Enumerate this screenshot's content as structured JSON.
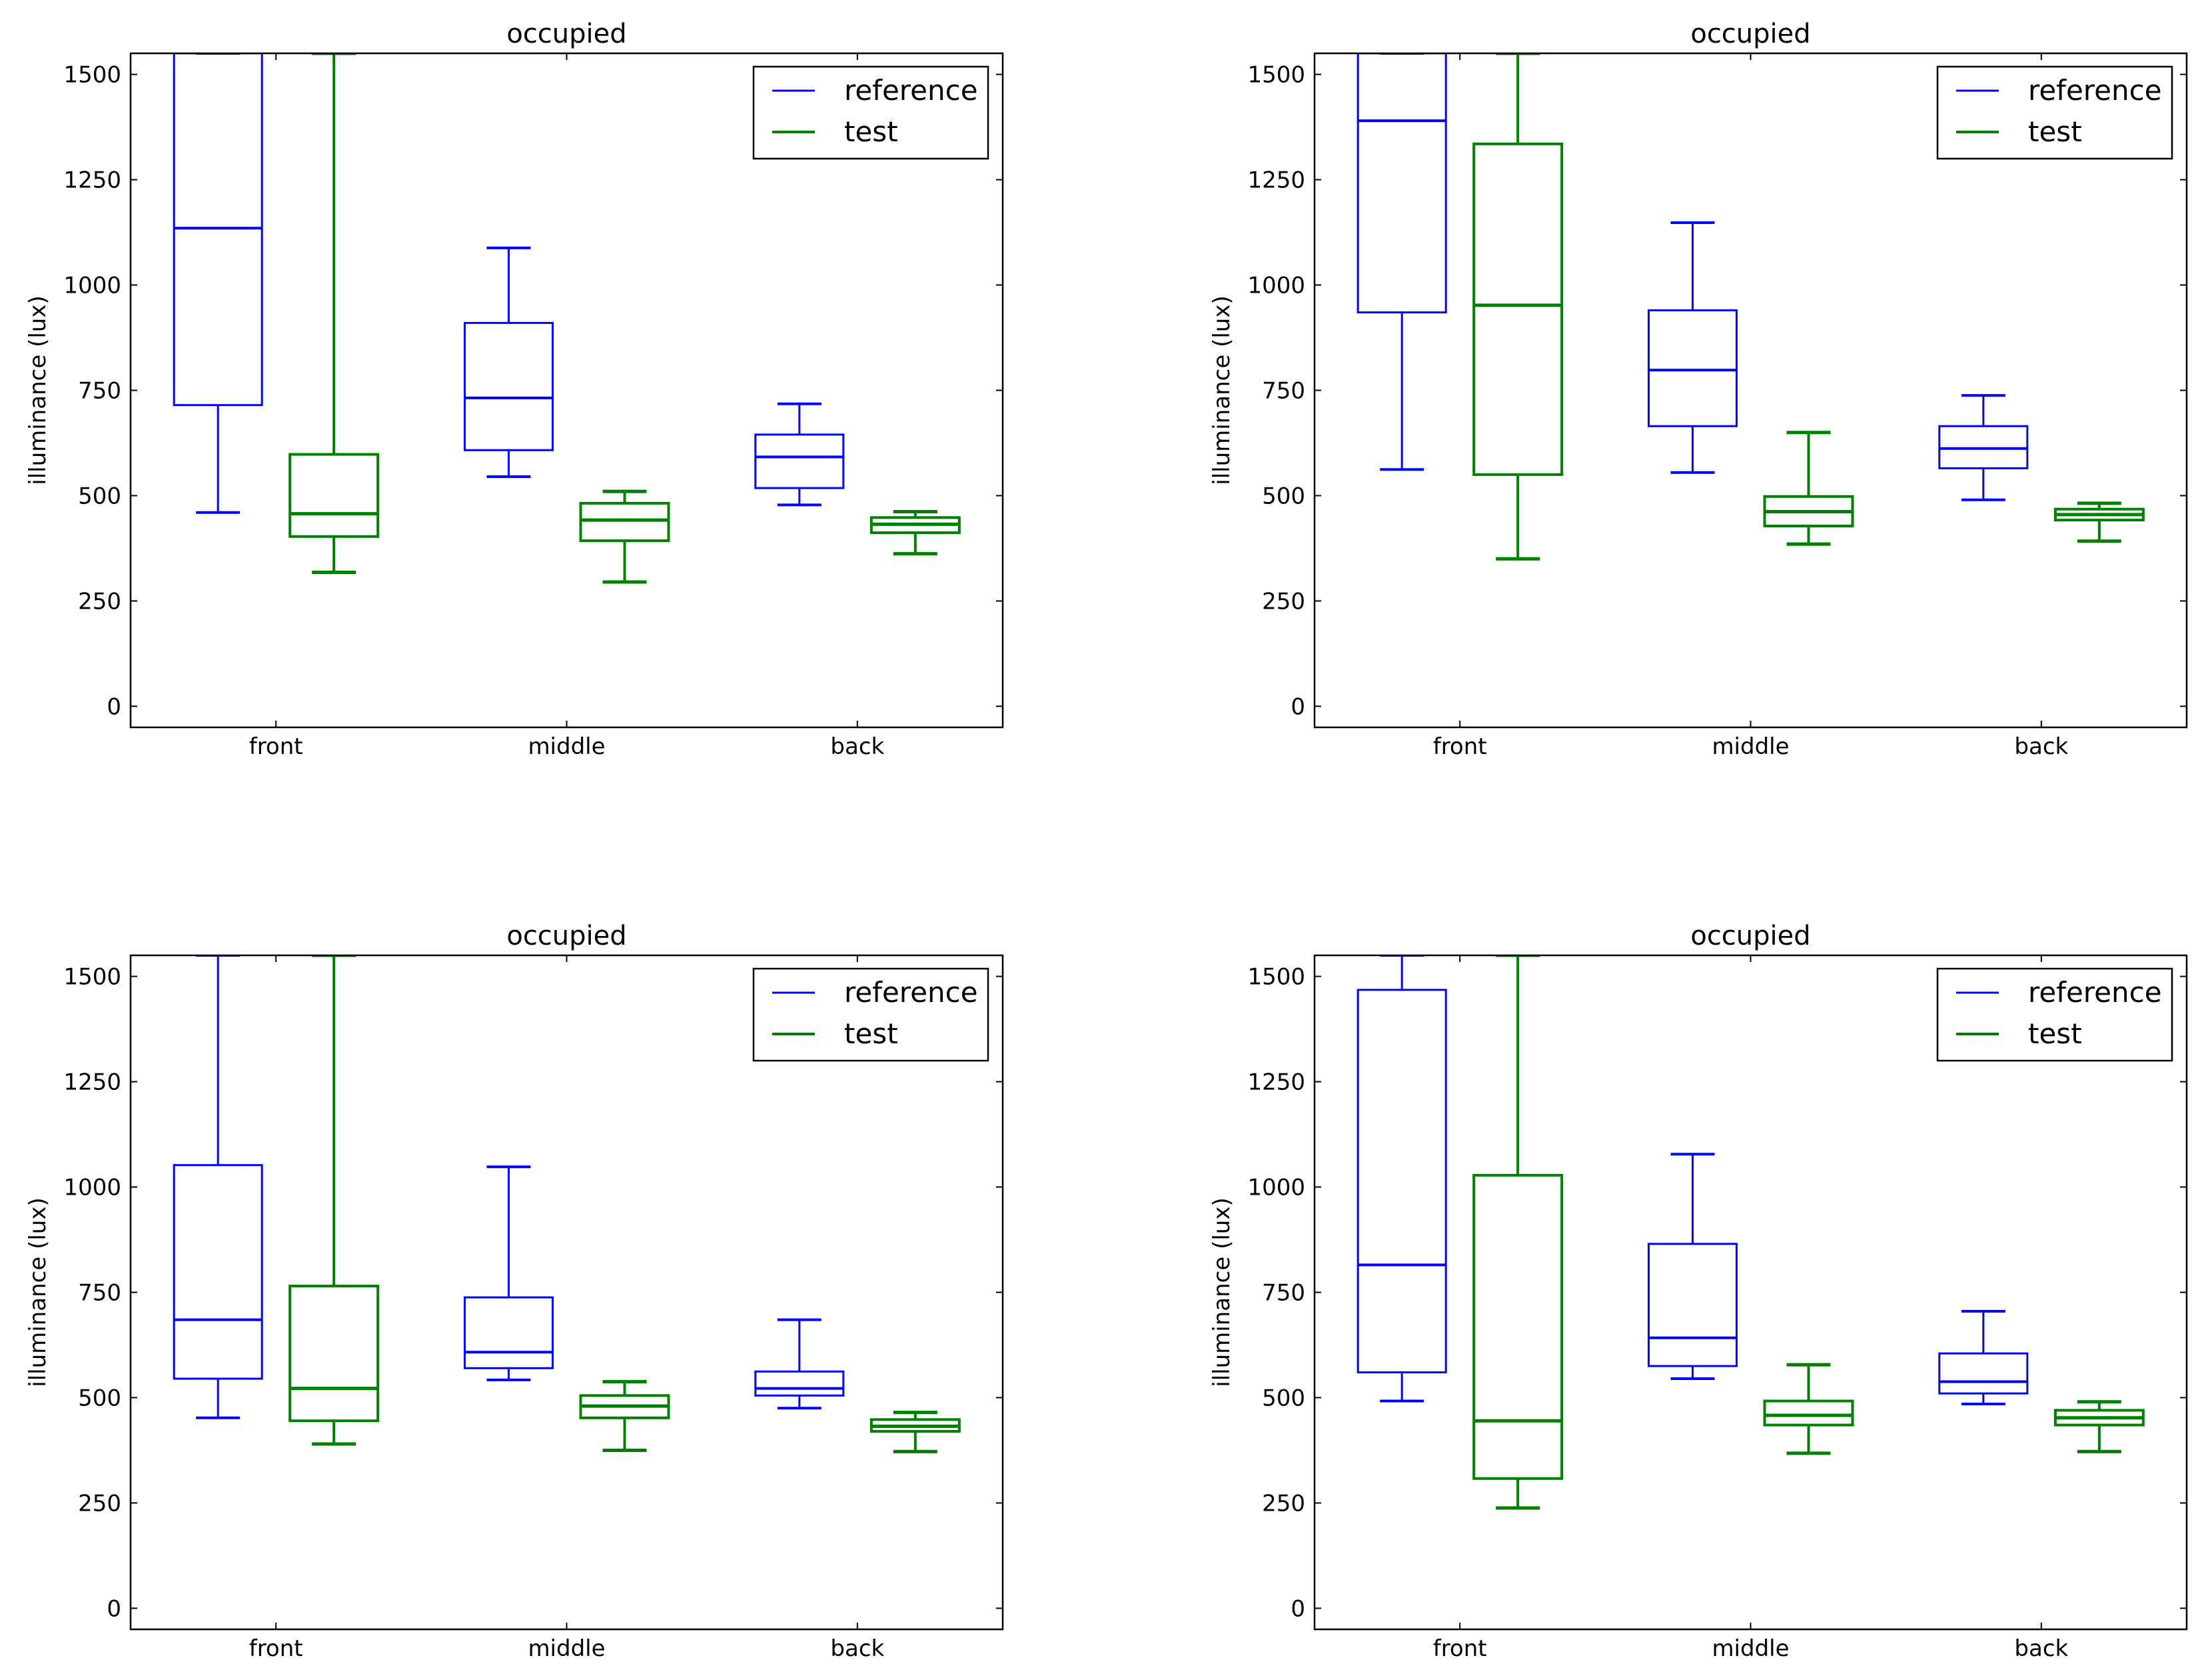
{
  "colors": {
    "reference": "#0000ff",
    "test": "#008000",
    "axes": "#000000"
  },
  "chart_data": [
    {
      "type": "box",
      "title": "occupied",
      "xlabel": "",
      "ylabel": "illuminance (lux)",
      "ylim": [
        -50,
        1550
      ],
      "yticks": [
        "0",
        "250",
        "500",
        "750",
        "1000",
        "1250",
        "1500"
      ],
      "categories": [
        "front",
        "middle",
        "back"
      ],
      "legend": {
        "position": "upper right",
        "entries": [
          "reference",
          "test"
        ]
      },
      "series": [
        {
          "name": "reference",
          "boxes": [
            {
              "whislo": 460,
              "q1": 715,
              "med": 1135,
              "q3": 1550,
              "whishi": 1550
            },
            {
              "whislo": 545,
              "q1": 608,
              "med": 732,
              "q3": 910,
              "whishi": 1088
            },
            {
              "whislo": 478,
              "q1": 518,
              "med": 592,
              "q3": 645,
              "whishi": 718
            }
          ]
        },
        {
          "name": "test",
          "boxes": [
            {
              "whislo": 318,
              "q1": 403,
              "med": 457,
              "q3": 598,
              "whishi": 1550
            },
            {
              "whislo": 295,
              "q1": 393,
              "med": 442,
              "q3": 482,
              "whishi": 510
            },
            {
              "whislo": 362,
              "q1": 412,
              "med": 432,
              "q3": 448,
              "whishi": 462
            }
          ]
        }
      ]
    },
    {
      "type": "box",
      "title": "occupied",
      "xlabel": "",
      "ylabel": "illuminance (lux)",
      "ylim": [
        -50,
        1550
      ],
      "yticks": [
        "0",
        "250",
        "500",
        "750",
        "1000",
        "1250",
        "1500"
      ],
      "categories": [
        "front",
        "middle",
        "back"
      ],
      "legend": {
        "position": "upper right",
        "entries": [
          "reference",
          "test"
        ]
      },
      "series": [
        {
          "name": "reference",
          "boxes": [
            {
              "whislo": 562,
              "q1": 935,
              "med": 1390,
              "q3": 1550,
              "whishi": 1550
            },
            {
              "whislo": 555,
              "q1": 665,
              "med": 798,
              "q3": 940,
              "whishi": 1148
            },
            {
              "whislo": 490,
              "q1": 565,
              "med": 612,
              "q3": 665,
              "whishi": 738
            }
          ]
        },
        {
          "name": "test",
          "boxes": [
            {
              "whislo": 350,
              "q1": 550,
              "med": 952,
              "q3": 1335,
              "whishi": 1550
            },
            {
              "whislo": 385,
              "q1": 428,
              "med": 462,
              "q3": 498,
              "whishi": 650
            },
            {
              "whislo": 392,
              "q1": 442,
              "med": 455,
              "q3": 468,
              "whishi": 482
            }
          ]
        }
      ]
    },
    {
      "type": "box",
      "title": "occupied",
      "xlabel": "",
      "ylabel": "illuminance (lux)",
      "ylim": [
        -50,
        1550
      ],
      "yticks": [
        "0",
        "250",
        "500",
        "750",
        "1000",
        "1250",
        "1500"
      ],
      "categories": [
        "front",
        "middle",
        "back"
      ],
      "legend": {
        "position": "upper right",
        "entries": [
          "reference",
          "test"
        ]
      },
      "series": [
        {
          "name": "reference",
          "boxes": [
            {
              "whislo": 452,
              "q1": 545,
              "med": 685,
              "q3": 1052,
              "whishi": 1550
            },
            {
              "whislo": 542,
              "q1": 570,
              "med": 608,
              "q3": 738,
              "whishi": 1048
            },
            {
              "whislo": 475,
              "q1": 505,
              "med": 522,
              "q3": 562,
              "whishi": 685
            }
          ]
        },
        {
          "name": "test",
          "boxes": [
            {
              "whislo": 390,
              "q1": 445,
              "med": 522,
              "q3": 765,
              "whishi": 1550
            },
            {
              "whislo": 375,
              "q1": 452,
              "med": 480,
              "q3": 505,
              "whishi": 538
            },
            {
              "whislo": 372,
              "q1": 420,
              "med": 432,
              "q3": 448,
              "whishi": 465
            }
          ]
        }
      ]
    },
    {
      "type": "box",
      "title": "occupied",
      "xlabel": "",
      "ylabel": "illuminance (lux)",
      "ylim": [
        -50,
        1550
      ],
      "yticks": [
        "0",
        "250",
        "500",
        "750",
        "1000",
        "1250",
        "1500"
      ],
      "categories": [
        "front",
        "middle",
        "back"
      ],
      "legend": {
        "position": "upper right",
        "entries": [
          "reference",
          "test"
        ]
      },
      "series": [
        {
          "name": "reference",
          "boxes": [
            {
              "whislo": 492,
              "q1": 560,
              "med": 815,
              "q3": 1468,
              "whishi": 1550
            },
            {
              "whislo": 545,
              "q1": 575,
              "med": 642,
              "q3": 865,
              "whishi": 1078
            },
            {
              "whislo": 485,
              "q1": 510,
              "med": 538,
              "q3": 605,
              "whishi": 705
            }
          ]
        },
        {
          "name": "test",
          "boxes": [
            {
              "whislo": 238,
              "q1": 308,
              "med": 445,
              "q3": 1028,
              "whishi": 1550
            },
            {
              "whislo": 368,
              "q1": 435,
              "med": 458,
              "q3": 492,
              "whishi": 578
            },
            {
              "whislo": 372,
              "q1": 435,
              "med": 452,
              "q3": 470,
              "whishi": 490
            }
          ]
        }
      ]
    }
  ]
}
